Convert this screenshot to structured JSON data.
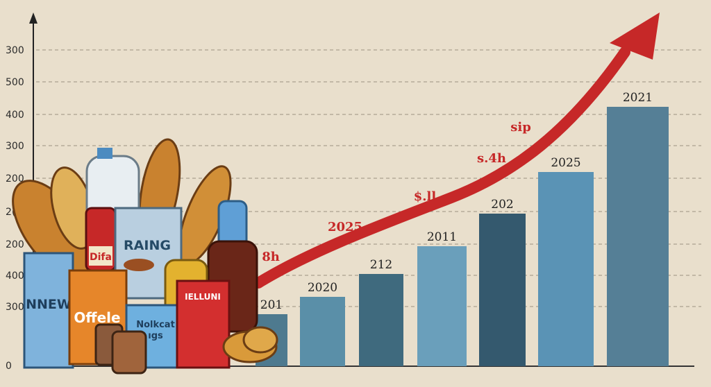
{
  "axis_labels": [
    "300",
    "500",
    "400",
    "300",
    "200",
    "2(",
    "200",
    "400",
    "300",
    "0"
  ],
  "bars": [
    {
      "label": "201"
    },
    {
      "label": "2020"
    },
    {
      "label": "212"
    },
    {
      "label": "2011"
    },
    {
      "label": "202"
    },
    {
      "label": "2025"
    },
    {
      "label": "2021"
    }
  ],
  "annotations": [
    "8h",
    "2025",
    "$.ll",
    "s.4h",
    "sip"
  ],
  "packages": [
    "RAING",
    "Difa",
    "NNEW",
    "Offele",
    "Nolkcat",
    "ıgs",
    "IELLUNI"
  ]
}
